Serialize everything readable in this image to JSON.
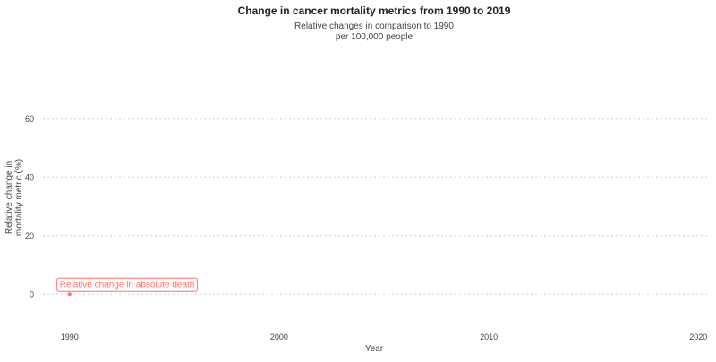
{
  "chart_data": {
    "type": "line",
    "title": "Change in cancer mortality metrics from 1990 to 2019",
    "subtitle_lines": [
      "Relative changes in comparison to 1990",
      "per 100,000 people"
    ],
    "xlabel": "Year",
    "ylabel_lines": [
      "Relative change in",
      "mortality metric (%)"
    ],
    "xlim": [
      1989.5,
      2020.5
    ],
    "ylim": [
      -10,
      70
    ],
    "x_ticks": [
      1990,
      2000,
      2010,
      2020
    ],
    "y_ticks": [
      0,
      20,
      40,
      60
    ],
    "grid": "horizontal-dotted",
    "series": [
      {
        "name": "Relative change in absolute death",
        "color": "#f8766d",
        "points": [
          {
            "x": 1990,
            "y": 0
          }
        ]
      }
    ]
  }
}
